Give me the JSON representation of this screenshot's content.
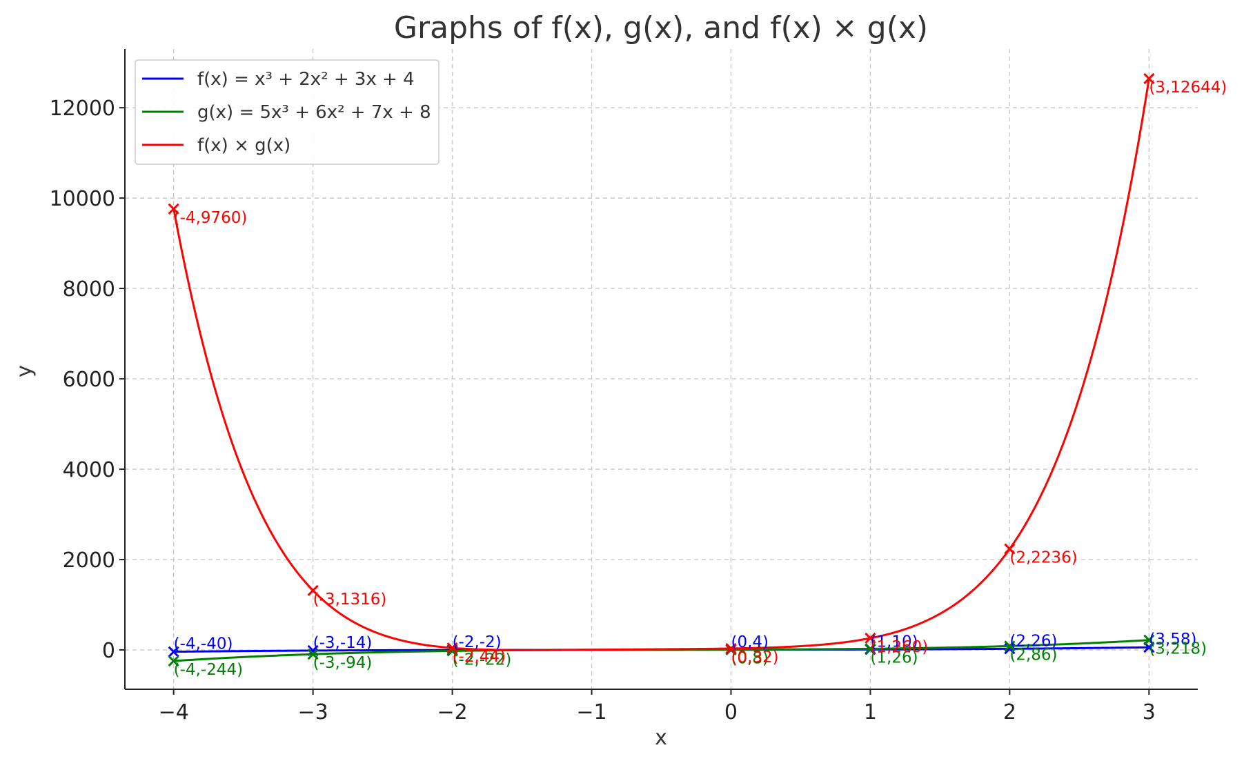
{
  "chart_data": {
    "type": "line",
    "title": "Graphs of f(x), g(x), and f(x) × g(x)",
    "xlabel": "x",
    "ylabel": "y",
    "xlim": [
      -4.35,
      3.35
    ],
    "ylim": [
      -870,
      13300
    ],
    "x_ticks": [
      -4,
      -3,
      -2,
      -1,
      0,
      1,
      2,
      3
    ],
    "x_tick_labels": [
      "−4",
      "−3",
      "−2",
      "−1",
      "0",
      "1",
      "2",
      "3"
    ],
    "y_ticks": [
      0,
      2000,
      4000,
      6000,
      8000,
      10000,
      12000
    ],
    "y_tick_labels": [
      "0",
      "2000",
      "4000",
      "6000",
      "8000",
      "10000",
      "12000"
    ],
    "grid": true,
    "legend_position": "top-left",
    "series": [
      {
        "name": "f(x) = x³ + 2x² + 3x + 4",
        "color": "#0000ff",
        "coefficients": [
          1,
          2,
          3,
          4
        ],
        "marker": "x",
        "points": [
          {
            "x": -4,
            "y": -40,
            "label": "(-4,-40)"
          },
          {
            "x": -3,
            "y": -14,
            "label": "(-3,-14)"
          },
          {
            "x": -2,
            "y": -2,
            "label": "(-2,-2)"
          },
          {
            "x": 0,
            "y": 4,
            "label": "(0,4)"
          },
          {
            "x": 1,
            "y": 10,
            "label": "(1,10)"
          },
          {
            "x": 2,
            "y": 26,
            "label": "(2,26)"
          },
          {
            "x": 3,
            "y": 58,
            "label": "(3,58)"
          }
        ]
      },
      {
        "name": "g(x) = 5x³ + 6x² + 7x + 8",
        "color": "#008000",
        "coefficients": [
          5,
          6,
          7,
          8
        ],
        "marker": "x",
        "points": [
          {
            "x": -4,
            "y": -244,
            "label": "(-4,-244)"
          },
          {
            "x": -3,
            "y": -94,
            "label": "(-3,-94)"
          },
          {
            "x": -2,
            "y": -22,
            "label": "(-2,-22)"
          },
          {
            "x": 0,
            "y": 8,
            "label": "(0,8)"
          },
          {
            "x": 1,
            "y": 26,
            "label": "(1,26)"
          },
          {
            "x": 2,
            "y": 86,
            "label": "(2,86)"
          },
          {
            "x": 3,
            "y": 218,
            "label": "(3,218)"
          }
        ]
      },
      {
        "name": "f(x) × g(x)",
        "color": "#ff0000",
        "coefficients": "product",
        "marker": "x",
        "points": [
          {
            "x": -4,
            "y": 9760,
            "label": "(-4,9760)"
          },
          {
            "x": -3,
            "y": 1316,
            "label": "(-3,1316)"
          },
          {
            "x": -2,
            "y": 44,
            "label": "(-2,44)"
          },
          {
            "x": 0,
            "y": 32,
            "label": "(0,32)"
          },
          {
            "x": 1,
            "y": 260,
            "label": "(1,260)"
          },
          {
            "x": 2,
            "y": 2236,
            "label": "(2,2236)"
          },
          {
            "x": 3,
            "y": 12644,
            "label": "(3,12644)"
          }
        ]
      }
    ]
  }
}
